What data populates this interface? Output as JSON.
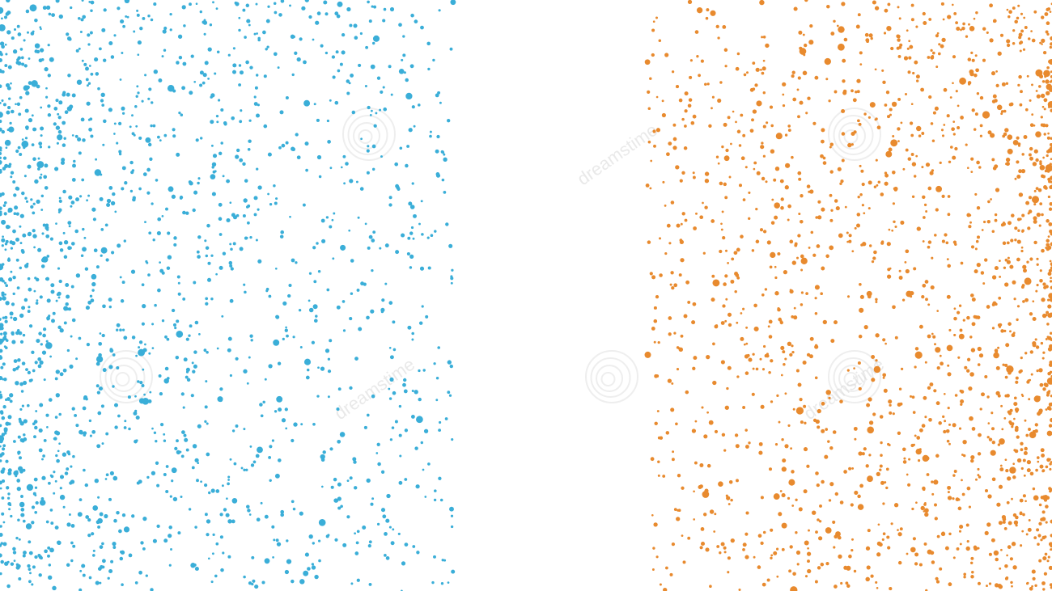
{
  "image": {
    "description_colors": {
      "background": "#ffffff",
      "left_dots": "#3aaed8",
      "right_dots": "#e88a2e",
      "watermark": "#cfcfcf"
    },
    "watermark": {
      "text": "dreamstime",
      "icon": "spiral-logo-icon"
    }
  }
}
